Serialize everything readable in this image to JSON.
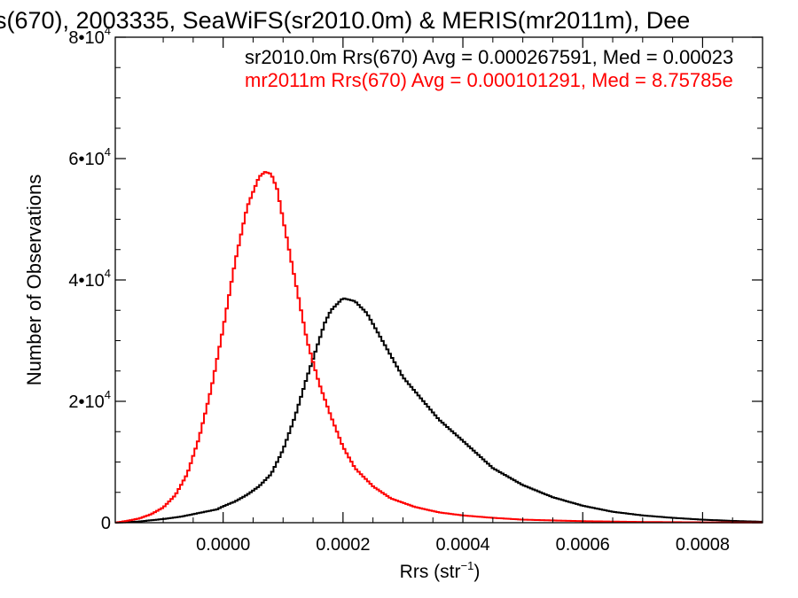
{
  "chart_data": {
    "type": "line",
    "title": "s(670), 2003335, SeaWiFS(sr2010.0m) & MERIS(mr2011m), Dee",
    "xlabel_main": "Rrs (str",
    "xlabel_exp": "−1",
    "xlabel_close": ")",
    "ylabel": "Number of Observations",
    "xlim": [
      -0.00018,
      0.0009
    ],
    "ylim": [
      0,
      80000
    ],
    "x_ticks": [
      {
        "value": 0.0,
        "label": "0.0000"
      },
      {
        "value": 0.0002,
        "label": "0.0002"
      },
      {
        "value": 0.0004,
        "label": "0.0004"
      },
      {
        "value": 0.0006,
        "label": "0.0006"
      },
      {
        "value": 0.0008,
        "label": "0.0008"
      }
    ],
    "y_ticks": [
      {
        "value": 0,
        "label": "0",
        "exp": ""
      },
      {
        "value": 20000,
        "label": "2•10",
        "exp": "4"
      },
      {
        "value": 40000,
        "label": "4•10",
        "exp": "4"
      },
      {
        "value": 60000,
        "label": "6•10",
        "exp": "4"
      },
      {
        "value": 80000,
        "label": "8•10",
        "exp": "4"
      }
    ],
    "annotations": [
      {
        "text": "sr2010.0m Rrs(670) Avg = 0.000267591, Med = 0.00023",
        "color": "#000000"
      },
      {
        "text": "mr2011m Rrs(670) Avg = 0.000101291, Med = 8.75785e",
        "color": "#ff0000"
      }
    ],
    "series": [
      {
        "name": "sr2010.0m",
        "color": "#000000",
        "x": [
          -0.00018,
          -0.00014,
          -0.0001,
          -7e-05,
          -5e-05,
          -3e-05,
          -1e-05,
          0.0,
          2e-05,
          4e-05,
          6e-05,
          8e-05,
          0.0001,
          0.00012,
          0.00014,
          0.00016,
          0.00017,
          0.00018,
          0.0002,
          0.00022,
          0.00024,
          0.00026,
          0.00028,
          0.0003,
          0.00033,
          0.00036,
          0.0004,
          0.00045,
          0.0005,
          0.00055,
          0.0006,
          0.00065,
          0.0007,
          0.00075,
          0.0008,
          0.00085,
          0.0009
        ],
        "y": [
          0,
          200,
          600,
          1000,
          1400,
          1800,
          2200,
          2700,
          3500,
          4600,
          6000,
          8000,
          12000,
          17500,
          24000,
          30000,
          33000,
          35000,
          37000,
          36500,
          34500,
          31000,
          27500,
          24000,
          20500,
          17000,
          13500,
          9000,
          6200,
          4200,
          2800,
          1800,
          1200,
          800,
          500,
          300,
          150
        ]
      },
      {
        "name": "mr2011m",
        "color": "#ff0000",
        "x": [
          -0.00018,
          -0.00016,
          -0.00014,
          -0.00012,
          -0.0001,
          -8e-05,
          -6e-05,
          -4e-05,
          -2e-05,
          0.0,
          2e-05,
          4e-05,
          6e-05,
          7e-05,
          8e-05,
          9e-05,
          0.0001,
          0.00011,
          0.00012,
          0.00013,
          0.00014,
          0.00016,
          0.00018,
          0.0002,
          0.00022,
          0.00025,
          0.00028,
          0.00032,
          0.00036,
          0.0004,
          0.00045,
          0.0005,
          0.0006,
          0.0007,
          0.0008,
          0.0009
        ],
        "y": [
          0,
          300,
          700,
          1400,
          2500,
          4500,
          8000,
          14000,
          22000,
          32000,
          43000,
          52000,
          57000,
          57800,
          57500,
          55000,
          50000,
          45000,
          40000,
          35000,
          30000,
          23000,
          17500,
          12500,
          9000,
          6000,
          4000,
          2600,
          1700,
          1200,
          800,
          500,
          250,
          120,
          60,
          30
        ]
      }
    ]
  }
}
